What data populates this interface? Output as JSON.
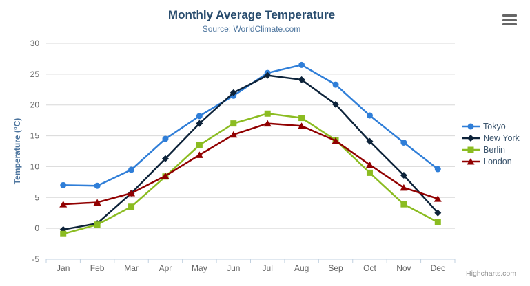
{
  "chart": {
    "title": "Monthly Average Temperature",
    "subtitle": "Source: WorldClimate.com",
    "y_axis_title": "Temperature (°C)",
    "credit": "Highcharts.com"
  },
  "icons": {
    "context_menu": "hamburger-icon"
  },
  "theme": {
    "title_color": "#274b6d",
    "subtitle_color": "#4d759e",
    "axis_title_color": "#4d759e",
    "axis_label_color": "#666666",
    "grid_color": "#d8d8d8",
    "axis_line_color": "#c0d0e0",
    "legend_text_color": "#3E576F",
    "credits_color": "#909090",
    "menu_icon_color": "#666666",
    "background": "#ffffff"
  },
  "chart_data": {
    "type": "line",
    "title": "Monthly Average Temperature",
    "subtitle": "Source: WorldClimate.com",
    "xlabel": "",
    "ylabel": "Temperature (°C)",
    "categories": [
      "Jan",
      "Feb",
      "Mar",
      "Apr",
      "May",
      "Jun",
      "Jul",
      "Aug",
      "Sep",
      "Oct",
      "Nov",
      "Dec"
    ],
    "series": [
      {
        "name": "Tokyo",
        "color": "#2f7ed8",
        "marker": "circle",
        "values": [
          7.0,
          6.9,
          9.5,
          14.5,
          18.2,
          21.5,
          25.2,
          26.5,
          23.3,
          18.3,
          13.9,
          9.6
        ]
      },
      {
        "name": "New York",
        "color": "#0d233a",
        "marker": "diamond",
        "values": [
          -0.2,
          0.8,
          5.7,
          11.3,
          17.0,
          22.0,
          24.8,
          24.1,
          20.1,
          14.1,
          8.6,
          2.5
        ]
      },
      {
        "name": "Berlin",
        "color": "#8bbc21",
        "marker": "square",
        "values": [
          -0.9,
          0.6,
          3.5,
          8.4,
          13.5,
          17.0,
          18.6,
          17.9,
          14.3,
          9.0,
          3.9,
          1.0
        ]
      },
      {
        "name": "London",
        "color": "#910000",
        "marker": "triangle",
        "values": [
          3.9,
          4.2,
          5.7,
          8.5,
          11.9,
          15.2,
          17.0,
          16.6,
          14.2,
          10.3,
          6.6,
          4.8
        ]
      }
    ],
    "ylim": [
      -5,
      30
    ],
    "y_ticks": [
      -5,
      0,
      5,
      10,
      15,
      20,
      25,
      30
    ],
    "grid": true,
    "legend_position": "right"
  }
}
